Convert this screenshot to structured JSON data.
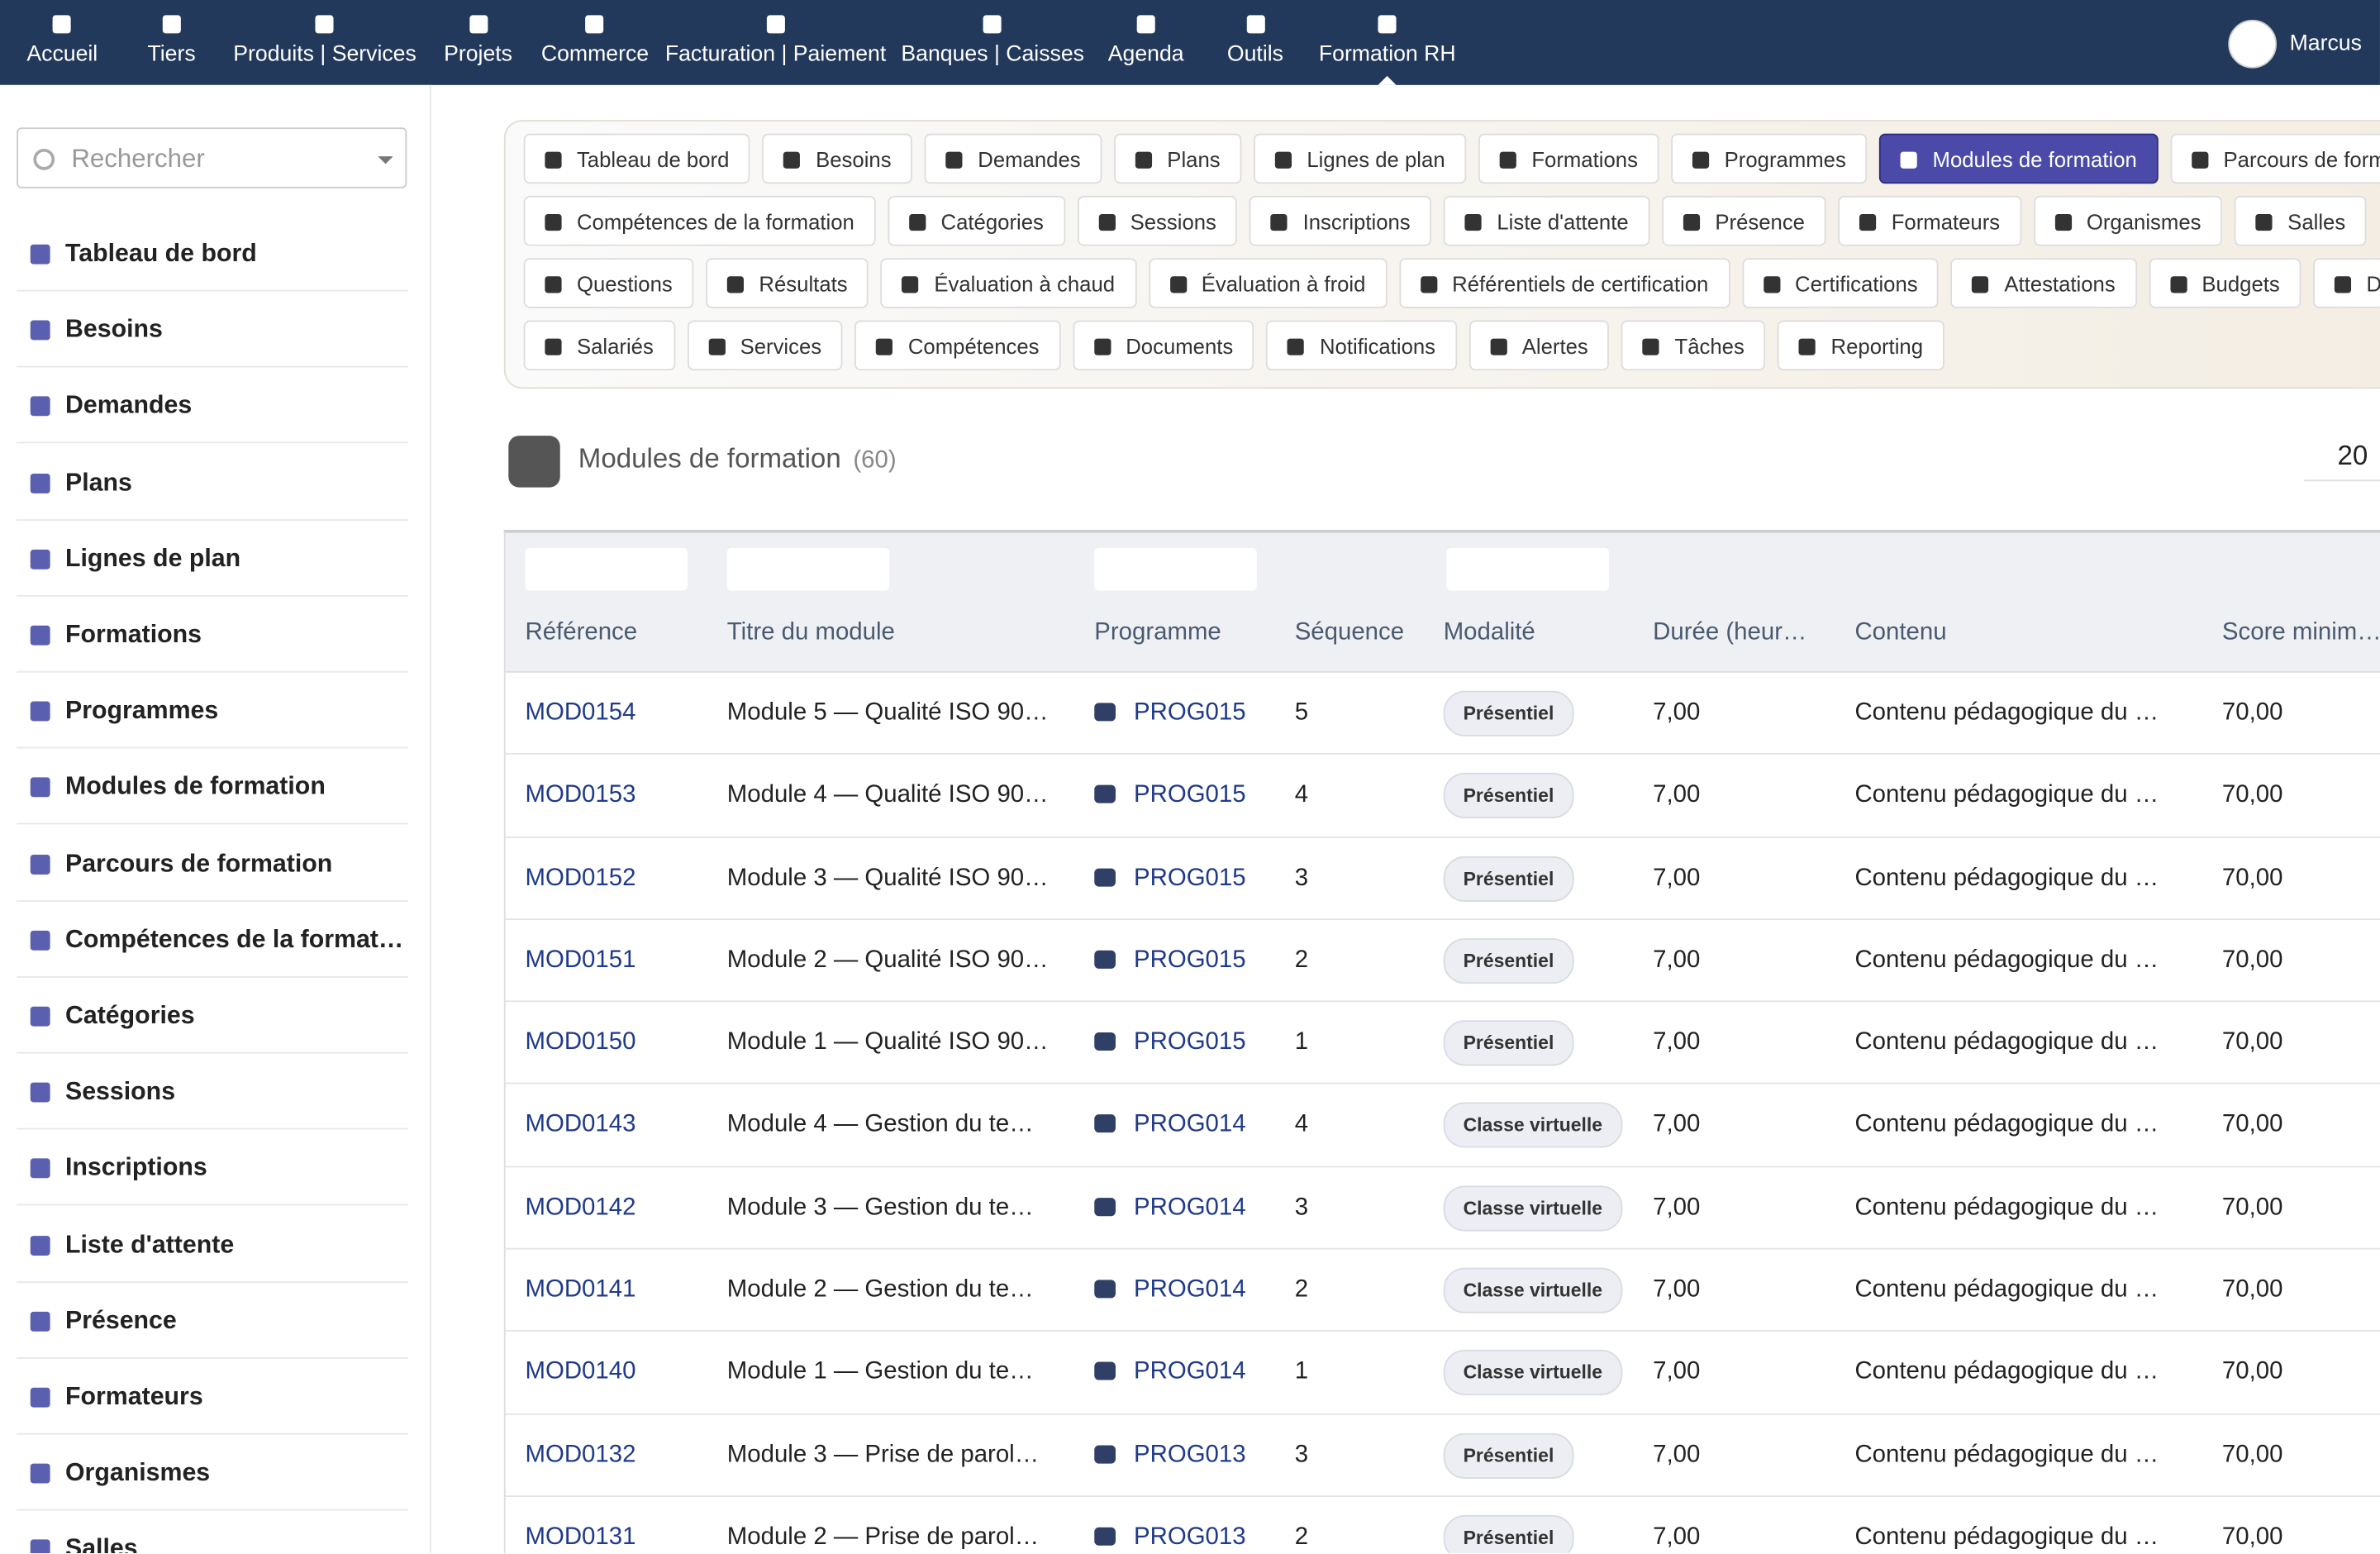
{
  "topnav": {
    "items": [
      "Accueil",
      "Tiers",
      "Produits | Services",
      "Projets",
      "Commerce",
      "Facturation | Paiement",
      "Banques | Caisses",
      "Agenda",
      "Outils",
      "Formation RH"
    ],
    "user": "Marcus"
  },
  "sidebar": {
    "search_placeholder": "Rechercher",
    "items": [
      "Tableau de bord",
      "Besoins",
      "Demandes",
      "Plans",
      "Lignes de plan",
      "Formations",
      "Programmes",
      "Modules de formation",
      "Parcours de formation",
      "Compétences de la formati…",
      "Catégories",
      "Sessions",
      "Inscriptions",
      "Liste d'attente",
      "Présence",
      "Formateurs",
      "Organismes",
      "Salles"
    ]
  },
  "tabs": {
    "rows": [
      [
        "Tableau de bord",
        "Besoins",
        "Demandes",
        "Plans",
        "Lignes de plan",
        "Formations",
        "Programmes",
        "Modules de formation",
        "Parcours de formation"
      ],
      [
        "Compétences de la formation",
        "Catégories",
        "Sessions",
        "Inscriptions",
        "Liste d'attente",
        "Présence",
        "Formateurs",
        "Organismes",
        "Salles"
      ],
      [
        "Questions",
        "Résultats",
        "Évaluation à chaud",
        "Évaluation à froid",
        "Référentiels de certification",
        "Certifications",
        "Attestations",
        "Budgets",
        "Dépenses"
      ],
      [
        "Salariés",
        "Services",
        "Compétences",
        "Documents",
        "Notifications",
        "Alertes",
        "Tâches",
        "Reporting"
      ]
    ]
  },
  "page": {
    "title": "Modules de formation",
    "count": "(60)",
    "page_size": "20"
  },
  "table": {
    "headers": [
      "Référence",
      "Titre du module",
      "Programme",
      "Séquence",
      "Modalité",
      "Durée (heur…",
      "Contenu",
      "Score minim…"
    ],
    "rows": [
      [
        "MOD0154",
        "Module 5 — Qualité ISO 90…",
        "PROG015",
        "5",
        "Présentiel",
        "7,00",
        "Contenu pédagogique du …",
        "70,00"
      ],
      [
        "MOD0153",
        "Module 4 — Qualité ISO 90…",
        "PROG015",
        "4",
        "Présentiel",
        "7,00",
        "Contenu pédagogique du …",
        "70,00"
      ],
      [
        "MOD0152",
        "Module 3 — Qualité ISO 90…",
        "PROG015",
        "3",
        "Présentiel",
        "7,00",
        "Contenu pédagogique du …",
        "70,00"
      ],
      [
        "MOD0151",
        "Module 2 — Qualité ISO 90…",
        "PROG015",
        "2",
        "Présentiel",
        "7,00",
        "Contenu pédagogique du …",
        "70,00"
      ],
      [
        "MOD0150",
        "Module 1 — Qualité ISO 90…",
        "PROG015",
        "1",
        "Présentiel",
        "7,00",
        "Contenu pédagogique du …",
        "70,00"
      ],
      [
        "MOD0143",
        "Module 4 — Gestion du te…",
        "PROG014",
        "4",
        "Classe virtuelle",
        "7,00",
        "Contenu pédagogique du …",
        "70,00"
      ],
      [
        "MOD0142",
        "Module 3 — Gestion du te…",
        "PROG014",
        "3",
        "Classe virtuelle",
        "7,00",
        "Contenu pédagogique du …",
        "70,00"
      ],
      [
        "MOD0141",
        "Module 2 — Gestion du te…",
        "PROG014",
        "2",
        "Classe virtuelle",
        "7,00",
        "Contenu pédagogique du …",
        "70,00"
      ],
      [
        "MOD0140",
        "Module 1 — Gestion du te…",
        "PROG014",
        "1",
        "Classe virtuelle",
        "7,00",
        "Contenu pédagogique du …",
        "70,00"
      ],
      [
        "MOD0132",
        "Module 3 — Prise de parol…",
        "PROG013",
        "3",
        "Présentiel",
        "7,00",
        "Contenu pédagogique du …",
        "70,00"
      ],
      [
        "MOD0131",
        "Module 2 — Prise de parol…",
        "PROG013",
        "2",
        "Présentiel",
        "7,00",
        "Contenu pédagogique du …",
        "70,00"
      ]
    ]
  }
}
